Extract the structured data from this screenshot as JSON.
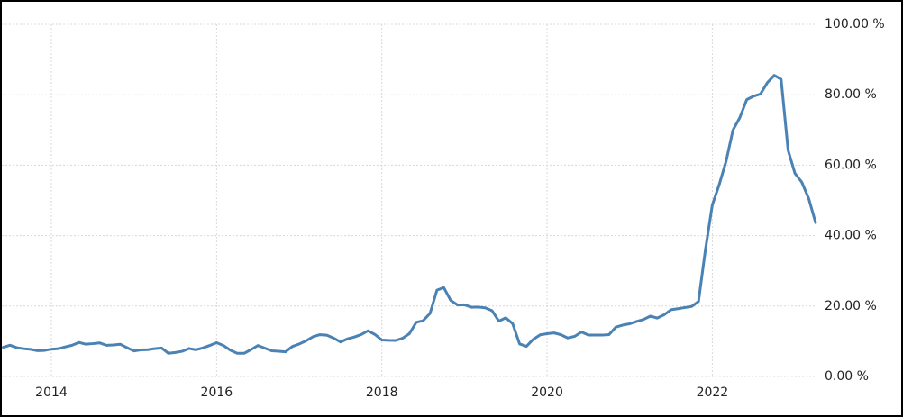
{
  "chart_data": {
    "type": "line",
    "x": [
      2013.417,
      2013.5,
      2013.583,
      2013.667,
      2013.75,
      2013.833,
      2013.917,
      2014.0,
      2014.083,
      2014.167,
      2014.25,
      2014.333,
      2014.417,
      2014.5,
      2014.583,
      2014.667,
      2014.75,
      2014.833,
      2014.917,
      2015.0,
      2015.083,
      2015.167,
      2015.25,
      2015.333,
      2015.417,
      2015.5,
      2015.583,
      2015.667,
      2015.75,
      2015.833,
      2015.917,
      2016.0,
      2016.083,
      2016.167,
      2016.25,
      2016.333,
      2016.417,
      2016.5,
      2016.583,
      2016.667,
      2016.75,
      2016.833,
      2016.917,
      2017.0,
      2017.083,
      2017.167,
      2017.25,
      2017.333,
      2017.417,
      2017.5,
      2017.583,
      2017.667,
      2017.75,
      2017.833,
      2017.917,
      2018.0,
      2018.083,
      2018.167,
      2018.25,
      2018.333,
      2018.417,
      2018.5,
      2018.583,
      2018.667,
      2018.75,
      2018.833,
      2018.917,
      2019.0,
      2019.083,
      2019.167,
      2019.25,
      2019.333,
      2019.417,
      2019.5,
      2019.583,
      2019.667,
      2019.75,
      2019.833,
      2019.917,
      2020.0,
      2020.083,
      2020.167,
      2020.25,
      2020.333,
      2020.417,
      2020.5,
      2020.583,
      2020.667,
      2020.75,
      2020.833,
      2020.917,
      2021.0,
      2021.083,
      2021.167,
      2021.25,
      2021.333,
      2021.417,
      2021.5,
      2021.583,
      2021.667,
      2021.75,
      2021.833,
      2021.917,
      2022.0,
      2022.083,
      2022.167,
      2022.25,
      2022.333,
      2022.417,
      2022.5,
      2022.583,
      2022.667,
      2022.75,
      2022.833,
      2022.917,
      2023.0,
      2023.083,
      2023.167,
      2023.25
    ],
    "values": [
      8.3,
      8.88,
      8.17,
      7.88,
      7.71,
      7.32,
      7.4,
      7.75,
      7.89,
      8.39,
      8.86,
      9.66,
      9.16,
      9.32,
      9.54,
      8.86,
      8.96,
      9.15,
      8.17,
      7.24,
      7.55,
      7.61,
      7.91,
      8.09,
      6.58,
      6.81,
      7.14,
      7.95,
      7.58,
      8.1,
      8.81,
      9.58,
      8.78,
      7.46,
      6.57,
      6.58,
      7.64,
      8.79,
      8.05,
      7.28,
      7.16,
      7.0,
      8.53,
      9.22,
      10.13,
      11.29,
      11.87,
      11.72,
      10.9,
      9.79,
      10.68,
      11.2,
      11.9,
      12.98,
      11.92,
      10.35,
      10.26,
      10.23,
      10.85,
      12.15,
      15.39,
      15.85,
      17.9,
      24.52,
      25.24,
      21.62,
      20.3,
      20.35,
      19.67,
      19.71,
      19.5,
      18.71,
      15.72,
      16.65,
      15.01,
      9.26,
      8.55,
      10.56,
      11.84,
      12.15,
      12.37,
      11.86,
      10.94,
      11.39,
      12.62,
      11.76,
      11.77,
      11.75,
      11.89,
      14.03,
      14.6,
      14.97,
      15.61,
      16.19,
      17.14,
      16.59,
      17.53,
      18.95,
      19.25,
      19.58,
      19.89,
      21.31,
      36.08,
      48.69,
      54.44,
      61.14,
      69.97,
      73.5,
      78.62,
      79.6,
      80.21,
      83.45,
      85.51,
      84.39,
      64.27,
      57.68,
      55.18,
      50.51,
      43.68
    ],
    "color": "#4a82b4",
    "xlim": [
      2013.4,
      2023.25
    ],
    "xticks": [
      2014,
      2016,
      2018,
      2020,
      2022
    ],
    "ylim": [
      0,
      100
    ],
    "yticks": [
      {
        "value": 0,
        "label": "0.00 %"
      },
      {
        "value": 20,
        "label": "20.00 %"
      },
      {
        "value": 40,
        "label": "40.00 %"
      },
      {
        "value": 60,
        "label": "60.00 %"
      },
      {
        "value": 80,
        "label": "80.00 %"
      },
      {
        "value": 100,
        "label": "100.00 %"
      }
    ],
    "grid": true
  }
}
